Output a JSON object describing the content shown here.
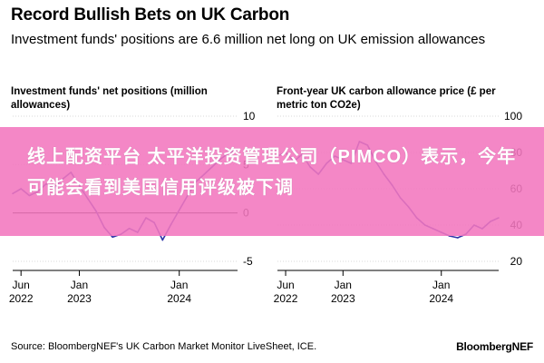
{
  "header": {
    "title": "Record Bullish Bets on UK Carbon",
    "subtitle": "Investment funds' positions are 6.6 million net long on UK emission allowances"
  },
  "overlay": {
    "text": "线上配资平台 太平洋投资管理公司（PIMCO）表示，今年可能会看到美国信用评级被下调"
  },
  "footer": {
    "source": "Source: BloombergNEF's UK Carbon Market Monitor LiveSheet, ICE.",
    "brand": "BloombergNEF"
  },
  "chart_data": [
    {
      "type": "line",
      "title": "Investment funds' net positions (million allowances)",
      "xlabel": "",
      "ylabel": "",
      "ylim": [
        -5,
        10
      ],
      "yticks": [
        "10",
        "5",
        "0",
        "-5"
      ],
      "xticks": [
        {
          "date": "2022-06",
          "line1": "Jun",
          "line2": "2022"
        },
        {
          "date": "2023-01",
          "line1": "Jan",
          "line2": "2023"
        },
        {
          "date": "2024-01",
          "line1": "Jan",
          "line2": "2024"
        }
      ],
      "xrange": [
        "2022-05",
        "2024-08"
      ],
      "zero_line": true,
      "series": [
        {
          "color": "#2f36a8",
          "x": [
            "2022-05",
            "2022-06",
            "2022-07",
            "2022-08",
            "2022-09",
            "2022-10",
            "2022-11",
            "2022-12",
            "2023-01",
            "2023-02",
            "2023-03",
            "2023-04",
            "2023-05",
            "2023-06",
            "2023-07",
            "2023-08",
            "2023-09",
            "2023-10",
            "2023-11",
            "2023-12",
            "2024-01",
            "2024-02",
            "2024-03",
            "2024-04",
            "2024-05",
            "2024-06",
            "2024-07",
            "2024-08"
          ],
          "values": [
            2.0,
            2.5,
            1.8,
            2.2,
            3.0,
            2.6,
            3.5,
            4.2,
            2.8,
            1.5,
            0.2,
            -1.5,
            -2.5,
            -2.2,
            -1.6,
            -2.0,
            -0.5,
            -1.0,
            -2.8,
            -1.2,
            0.3,
            1.8,
            3.2,
            4.0,
            4.8,
            5.6,
            6.2,
            6.6
          ]
        }
      ]
    },
    {
      "type": "line",
      "title": "Front-year UK carbon allowance price (£ per metric ton CO2e)",
      "xlabel": "",
      "ylabel": "",
      "ylim": [
        20,
        100
      ],
      "yticks": [
        "100",
        "80",
        "60",
        "40",
        "20"
      ],
      "xticks": [
        {
          "date": "2022-06",
          "line1": "Jun",
          "line2": "2022"
        },
        {
          "date": "2023-01",
          "line1": "Jan",
          "line2": "2023"
        },
        {
          "date": "2024-01",
          "line1": "Jan",
          "line2": "2024"
        }
      ],
      "xrange": [
        "2022-05",
        "2024-08"
      ],
      "zero_line": false,
      "series": [
        {
          "color": "#2f36a8",
          "x": [
            "2022-05",
            "2022-06",
            "2022-07",
            "2022-08",
            "2022-09",
            "2022-10",
            "2022-11",
            "2022-12",
            "2023-01",
            "2023-02",
            "2023-03",
            "2023-04",
            "2023-05",
            "2023-06",
            "2023-07",
            "2023-08",
            "2023-09",
            "2023-10",
            "2023-11",
            "2023-12",
            "2024-01",
            "2024-02",
            "2024-03",
            "2024-04",
            "2024-05",
            "2024-06",
            "2024-07",
            "2024-08"
          ],
          "values": [
            78,
            80,
            75,
            79,
            72,
            68,
            74,
            78,
            76,
            74,
            86,
            84,
            75,
            68,
            62,
            55,
            50,
            44,
            40,
            38,
            36,
            34,
            33,
            35,
            40,
            38,
            42,
            44
          ]
        }
      ]
    }
  ]
}
